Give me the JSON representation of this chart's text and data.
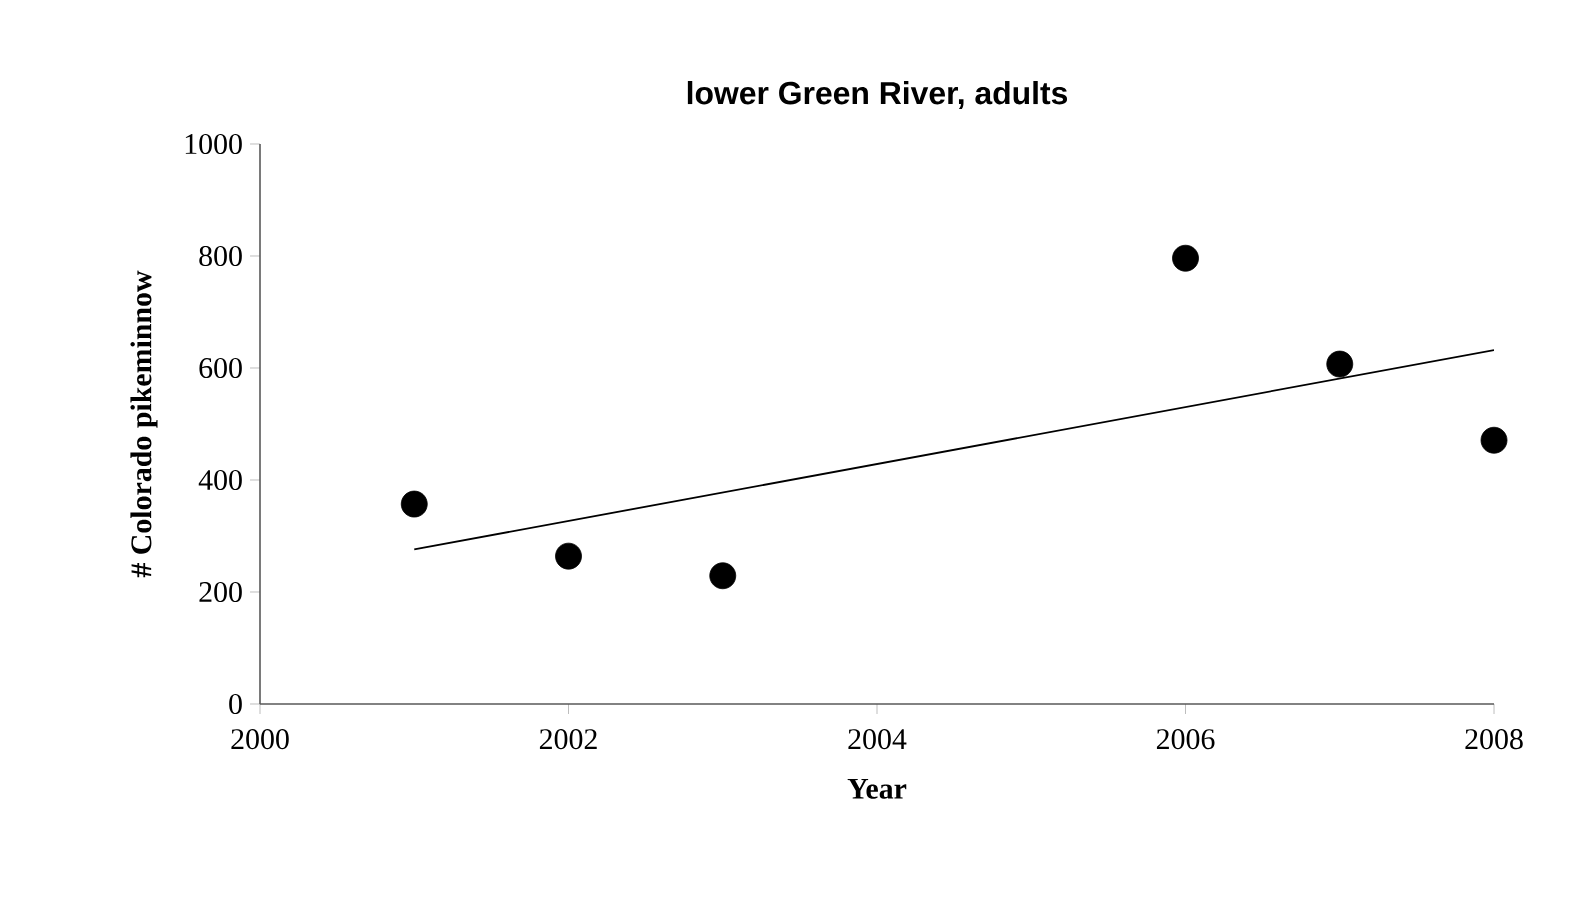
{
  "chart_data": {
    "type": "scatter",
    "title": "lower Green River, adults",
    "xlabel": "Year",
    "ylabel": "# Colorado pikeminnow",
    "x": [
      2001,
      2002,
      2003,
      2006,
      2007,
      2008
    ],
    "series": [
      {
        "color": "#000000",
        "marker": "circle",
        "values": [
          357,
          264,
          229,
          796,
          607,
          471
        ]
      },
      {
        "type": "line",
        "color": "#000000",
        "x": [
          2001,
          2008
        ],
        "values": [
          276,
          632
        ],
        "line_style": "solid",
        "marker": "none"
      }
    ],
    "xlim": [
      2000,
      2008
    ],
    "xticks": [
      2000,
      2002,
      2004,
      2006,
      2008
    ],
    "ylim": [
      0,
      1000
    ],
    "yticks": [
      0,
      200,
      400,
      600,
      800,
      1000
    ],
    "grid": false
  }
}
